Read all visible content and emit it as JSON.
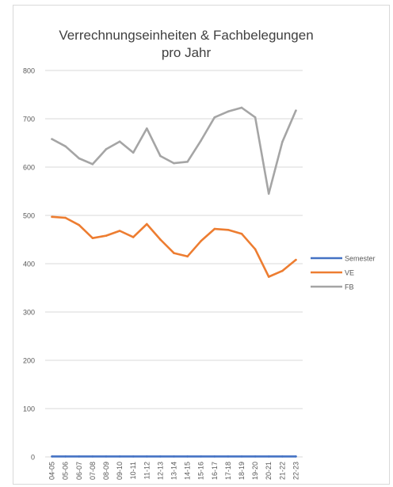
{
  "chart_data": {
    "type": "line",
    "title": "Verrechnungseinheiten & Fachbelegungen",
    "subtitle": "pro Jahr",
    "categories": [
      "04-05",
      "05-06",
      "06-07",
      "07-08",
      "08-09",
      "09-10",
      "10-11",
      "11-12",
      "12-13",
      "13-14",
      "14-15",
      "15-16",
      "16-17",
      "17-18",
      "18-19",
      "19-20",
      "20-21",
      "21-22",
      "22-23"
    ],
    "y_ticks": [
      "0",
      "100",
      "200",
      "300",
      "400",
      "500",
      "600",
      "700",
      "800"
    ],
    "ylim": [
      0,
      800
    ],
    "grid": "horizontal",
    "legend_position": "right",
    "series": [
      {
        "name": "Semester",
        "color": "#4472c4",
        "values": [
          1,
          1,
          1,
          1,
          1,
          1,
          1,
          1,
          1,
          1,
          1,
          1,
          1,
          1,
          1,
          1,
          1,
          1,
          1
        ]
      },
      {
        "name": "VE",
        "color": "#ed7d31",
        "values": [
          497,
          495,
          480,
          453,
          458,
          468,
          455,
          482,
          450,
          422,
          415,
          447,
          472,
          470,
          462,
          430,
          373,
          385,
          408
        ]
      },
      {
        "name": "FB",
        "color": "#a5a5a5",
        "values": [
          658,
          643,
          618,
          606,
          637,
          653,
          630,
          680,
          623,
          608,
          611,
          655,
          703,
          715,
          723,
          703,
          545,
          652,
          717
        ]
      }
    ]
  }
}
